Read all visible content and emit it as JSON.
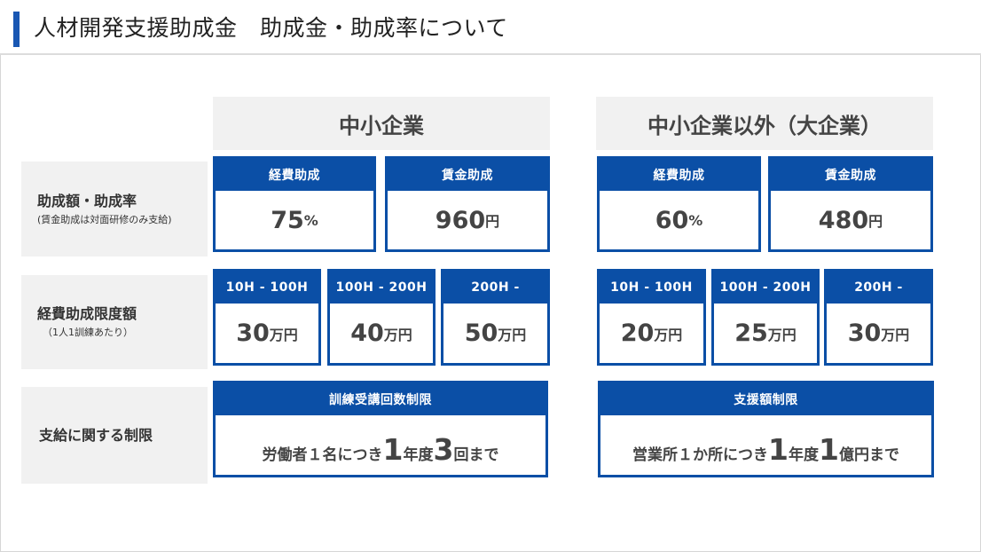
{
  "header": {
    "title": "人材開発支援助成金　助成金・助成率について"
  },
  "groups": {
    "sme": {
      "title": "中小企業"
    },
    "large": {
      "title": "中小企業以外（大企業）"
    }
  },
  "rows": {
    "rate": {
      "label": "助成額・助成率",
      "sub": "(賃金助成は対面研修のみ支給)"
    },
    "limit": {
      "label": "経費助成限度額",
      "sub": "（1人1訓練あたり）"
    },
    "restrict": {
      "label": "支給に関する制限"
    }
  },
  "sme": {
    "expense": {
      "head": "経費助成",
      "value": "75",
      "unit": "%"
    },
    "wage": {
      "head": "賃金助成",
      "value": "960",
      "unit": "円"
    },
    "limits": [
      {
        "head": "10H - 100H",
        "value": "30",
        "unit": "万円"
      },
      {
        "head": "100H - 200H",
        "value": "40",
        "unit": "万円"
      },
      {
        "head": "200H -",
        "value": "50",
        "unit": "万円"
      }
    ],
    "restriction": {
      "head": "訓練受講回数制限",
      "t1": "労働者１名につき",
      "n1": "1",
      "t2": "年度",
      "n2": "3",
      "t3": "回まで"
    }
  },
  "large": {
    "expense": {
      "head": "経費助成",
      "value": "60",
      "unit": "%"
    },
    "wage": {
      "head": "賃金助成",
      "value": "480",
      "unit": "円"
    },
    "limits": [
      {
        "head": "10H - 100H",
        "value": "20",
        "unit": "万円"
      },
      {
        "head": "100H - 200H",
        "value": "25",
        "unit": "万円"
      },
      {
        "head": "200H -",
        "value": "30",
        "unit": "万円"
      }
    ],
    "restriction": {
      "head": "支援額制限",
      "t1": "営業所１か所につき",
      "n1": "1",
      "t2": "年度",
      "n2": "1",
      "t3": "億円まで"
    }
  }
}
